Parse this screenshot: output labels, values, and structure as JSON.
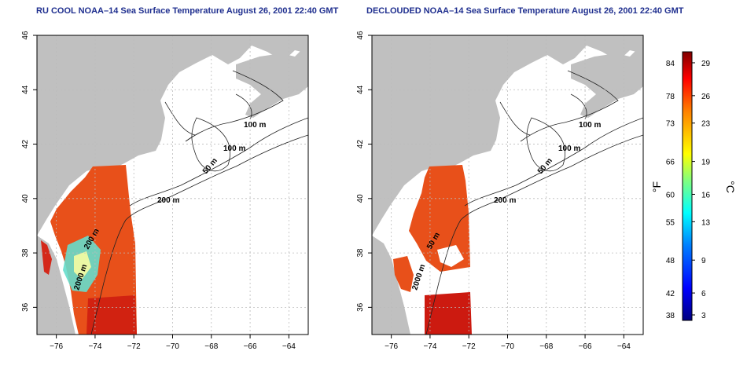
{
  "panels": [
    {
      "title": "RU COOL NOAA–14 Sea Surface Temperature August 26, 2001 22:40 GMT",
      "contour_labels": [
        "100 m",
        "100 m",
        "50 m",
        "200 m",
        "200 m",
        "2000 m"
      ]
    },
    {
      "title": "DECLOUDED NOAA–14 Sea Surface Temperature August 26, 2001 22:40 GMT",
      "contour_labels": [
        "100 m",
        "100 m",
        "50 m",
        "200 m",
        "50 m",
        "2000 m"
      ]
    }
  ],
  "axes": {
    "lon_ticks": [
      "−76",
      "−74",
      "−72",
      "−70",
      "−68",
      "−66",
      "−64"
    ],
    "lat_ticks": [
      "36",
      "38",
      "40",
      "42",
      "44",
      "46"
    ]
  },
  "colorbar": {
    "fahrenheit_label": "°F",
    "celsius_label": "°C",
    "fahrenheit_ticks": [
      "84",
      "78",
      "73",
      "66",
      "60",
      "55",
      "48",
      "42",
      "38"
    ],
    "celsius_ticks": [
      "29",
      "26",
      "23",
      "19",
      "16",
      "13",
      "9",
      "6",
      "3"
    ],
    "colors": [
      "#000080",
      "#0000ff",
      "#0080ff",
      "#00ffff",
      "#80ff80",
      "#ffff00",
      "#ff8000",
      "#ff0000",
      "#800000"
    ]
  },
  "colors": {
    "title": "#1f2f8f",
    "land": "#c0c0c0",
    "ocean": "#ffffff",
    "sst_warm": "#e8501a",
    "sst_hot": "#cc1a10",
    "grid": "#bbbbbb"
  }
}
